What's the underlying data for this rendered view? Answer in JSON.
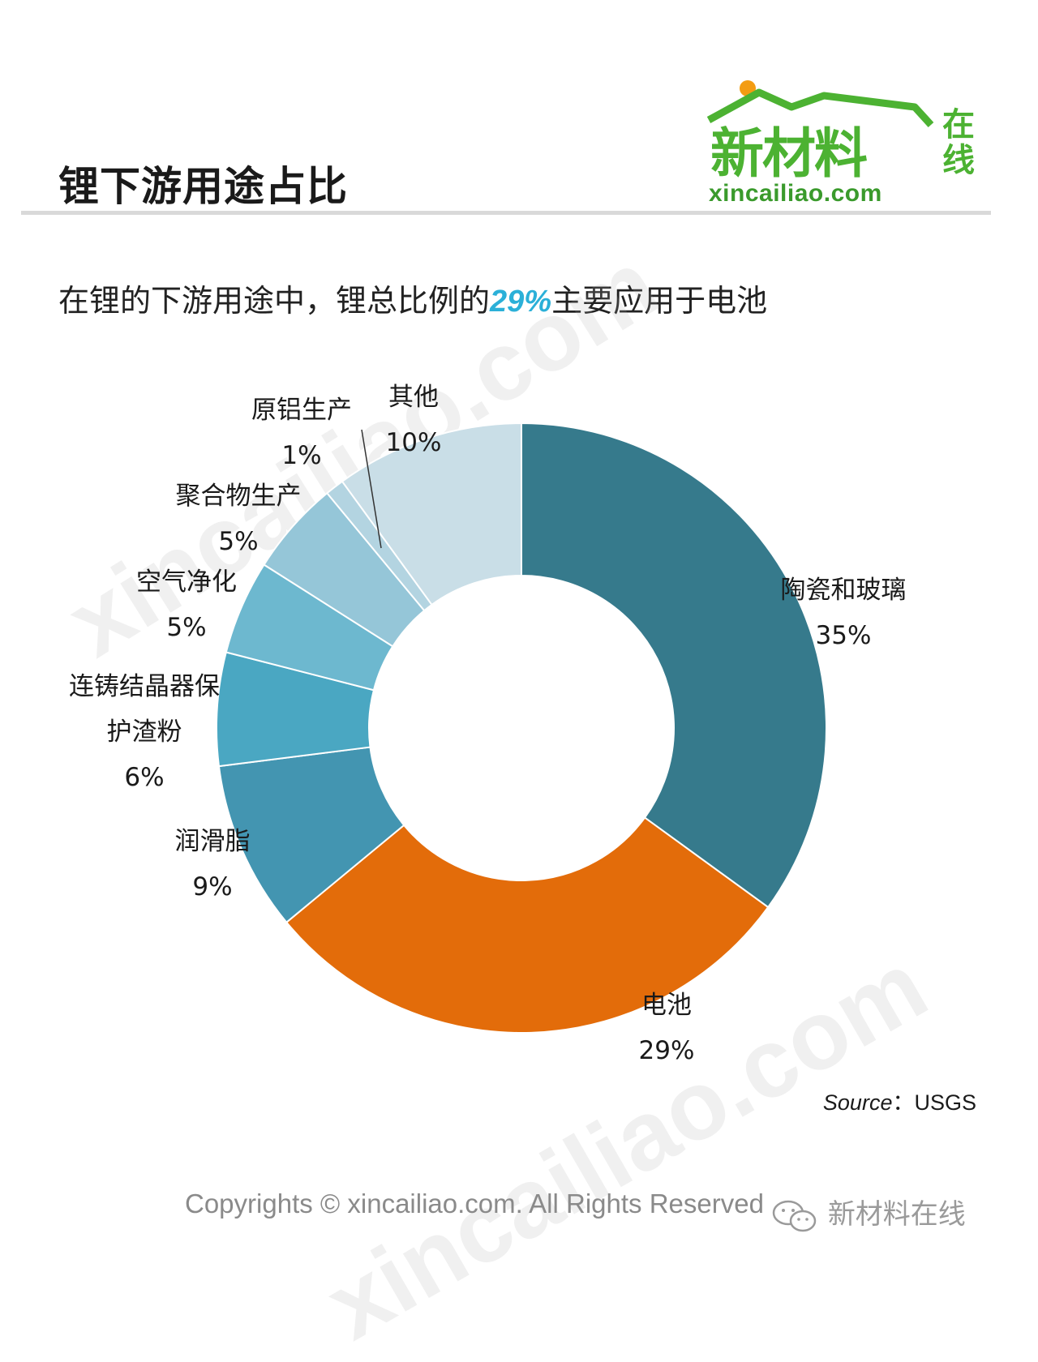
{
  "header": {
    "title": "锂下游用途占比"
  },
  "logo": {
    "chinese": "新材料",
    "side": "在线",
    "domain": "xincailiao.com",
    "color": "#4cb232",
    "dot_color": "#f39c12"
  },
  "subtitle": {
    "before": "在锂的下游用途中，锂总比例的",
    "highlight": "29%",
    "after": "主要应用于电池"
  },
  "chart_data": {
    "type": "pie",
    "variant": "donut",
    "unit": "%",
    "slices": [
      {
        "label": "陶瓷和玻璃",
        "value": 35,
        "label_pct": "35%",
        "color": "#367a8c"
      },
      {
        "label": "电池",
        "value": 29,
        "label_pct": "29%",
        "color": "#e36c0a"
      },
      {
        "label": "润滑脂",
        "value": 9,
        "label_pct": "9%",
        "color": "#4395b1"
      },
      {
        "label": "连铸结晶器保护渣粉",
        "label_lines": [
          "连铸结晶器保",
          "护渣粉"
        ],
        "value": 6,
        "label_pct": "6%",
        "color": "#4aa7c2"
      },
      {
        "label": "空气净化",
        "value": 5,
        "label_pct": "5%",
        "color": "#6db8cf"
      },
      {
        "label": "聚合物生产",
        "value": 5,
        "label_pct": "5%",
        "color": "#95c6d8"
      },
      {
        "label": "原铝生产",
        "value": 1,
        "label_pct": "1%",
        "color": "#b3d4e1"
      },
      {
        "label": "其他",
        "value": 10,
        "label_pct": "10%",
        "color": "#c9dee7"
      }
    ]
  },
  "source": {
    "prefix": "Source",
    "separator": "：",
    "name": "USGS"
  },
  "footer": {
    "copyright": "Copyrights © xincailiao.com. All Rights Reserved",
    "wechat_name": "新材料在线"
  },
  "watermark": {
    "text": "xincailiao.com"
  }
}
